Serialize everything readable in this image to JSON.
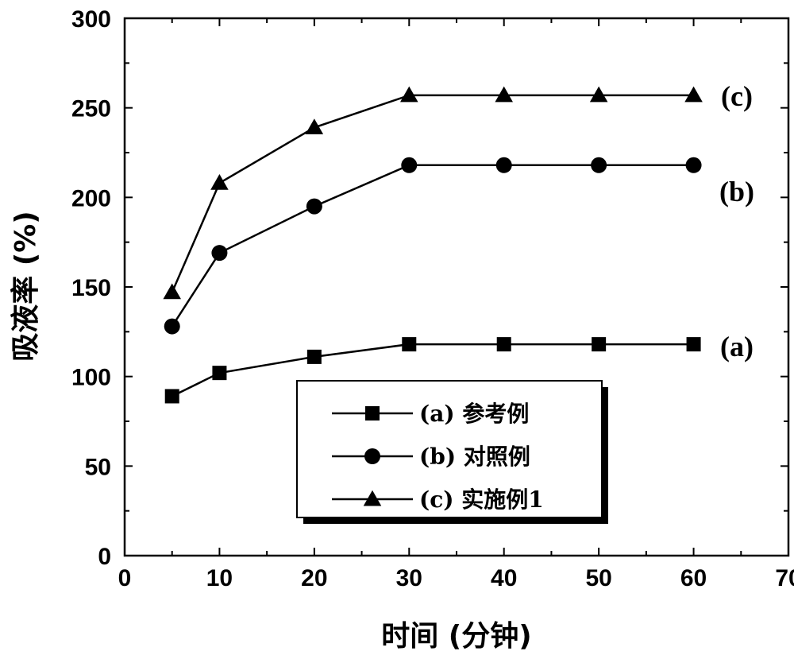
{
  "chart_data": {
    "type": "line",
    "xlabel": "时间 (分钟)",
    "ylabel": "吸液率 (%)",
    "xlim": [
      0,
      70
    ],
    "ylim": [
      0,
      300
    ],
    "x_ticks": [
      0,
      10,
      20,
      30,
      40,
      50,
      60,
      70
    ],
    "y_ticks": [
      0,
      50,
      100,
      150,
      200,
      250,
      300
    ],
    "grid": false,
    "legend_position": "center",
    "series": [
      {
        "name": "(a) 参考例",
        "marker": "square",
        "curve_label": "(a)",
        "x": [
          5,
          10,
          20,
          30,
          40,
          50,
          60
        ],
        "y": [
          89,
          102,
          111,
          118,
          118,
          118,
          118
        ]
      },
      {
        "name": "(b) 对照例",
        "marker": "circle",
        "curve_label": "(b)",
        "x": [
          5,
          10,
          20,
          30,
          40,
          50,
          60
        ],
        "y": [
          128,
          169,
          195,
          218,
          218,
          218,
          218
        ]
      },
      {
        "name": "(c) 实施例1",
        "marker": "triangle",
        "curve_label": "(c)",
        "x": [
          5,
          10,
          20,
          30,
          40,
          50,
          60
        ],
        "y": [
          147,
          208,
          239,
          257,
          257,
          257,
          257
        ]
      }
    ]
  }
}
